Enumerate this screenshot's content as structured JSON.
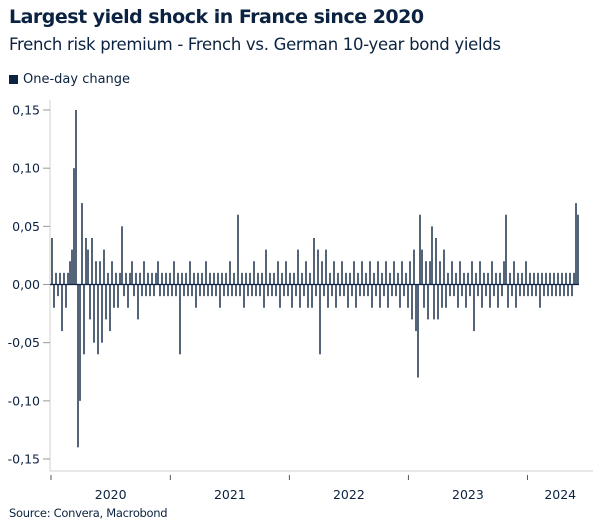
{
  "title": "Largest yield shock in France since 2020",
  "subtitle": "French risk premium - French vs. German 10-year bond yields",
  "source": "Source: Convera, Macrobond",
  "colors": {
    "bar": "#0b2240",
    "axis": "#d0d0d0"
  },
  "chart_data": {
    "type": "bar",
    "title": "Largest yield shock in France since 2020",
    "legend": [
      "One-day change"
    ],
    "legend_position": "top-left",
    "x_range": [
      "2020-01-01",
      "2024-07-20"
    ],
    "x_tick_labels": [
      "2020",
      "2021",
      "2022",
      "2023",
      "2024"
    ],
    "ylim": [
      -0.15,
      0.15
    ],
    "y_ticks": [
      0.15,
      0.1,
      0.05,
      0.0,
      -0.05,
      -0.1,
      -0.15
    ],
    "y_tick_labels": [
      "0,15",
      "0,10",
      "0,05",
      "0,00",
      "-0,05",
      "-0,10",
      "-0,15"
    ],
    "grid": false,
    "values": [
      0.04,
      -0.02,
      0.01,
      -0.01,
      0.01,
      -0.04,
      0.01,
      -0.02,
      0.01,
      0.02,
      0.03,
      0.1,
      0.15,
      -0.14,
      -0.1,
      0.07,
      -0.06,
      0.04,
      0.03,
      -0.03,
      0.04,
      -0.05,
      0.02,
      -0.06,
      0.02,
      -0.05,
      0.03,
      -0.03,
      0.01,
      -0.04,
      0.02,
      -0.02,
      0.01,
      -0.02,
      0.01,
      0.05,
      -0.01,
      0.01,
      -0.02,
      0.01,
      0.02,
      -0.01,
      0.01,
      -0.03,
      0.01,
      -0.01,
      0.02,
      -0.01,
      0.01,
      -0.01,
      0.01,
      -0.01,
      0.01,
      0.02,
      -0.01,
      0.01,
      -0.01,
      0.01,
      -0.01,
      0.01,
      -0.01,
      0.02,
      -0.01,
      0.01,
      -0.06,
      0.01,
      -0.01,
      0.01,
      -0.01,
      0.02,
      -0.01,
      0.01,
      -0.02,
      0.01,
      -0.01,
      0.01,
      -0.01,
      0.02,
      -0.01,
      0.01,
      -0.01,
      0.01,
      -0.01,
      0.01,
      -0.02,
      0.01,
      -0.01,
      0.01,
      -0.01,
      0.02,
      -0.01,
      0.01,
      -0.01,
      0.06,
      -0.01,
      0.01,
      -0.02,
      0.01,
      -0.01,
      0.01,
      -0.01,
      0.02,
      -0.01,
      0.01,
      -0.01,
      0.01,
      -0.02,
      0.03,
      -0.01,
      0.01,
      -0.01,
      0.01,
      -0.01,
      0.02,
      -0.02,
      0.01,
      -0.01,
      0.02,
      -0.01,
      0.01,
      -0.02,
      0.01,
      -0.01,
      0.03,
      -0.02,
      0.01,
      -0.01,
      0.02,
      -0.02,
      0.01,
      -0.02,
      0.04,
      -0.01,
      0.03,
      -0.06,
      0.02,
      -0.01,
      0.03,
      -0.02,
      0.01,
      -0.01,
      0.02,
      -0.02,
      0.01,
      -0.01,
      0.02,
      -0.01,
      0.01,
      -0.02,
      0.01,
      -0.01,
      0.02,
      -0.02,
      0.01,
      -0.01,
      0.02,
      -0.01,
      0.01,
      -0.01,
      0.02,
      -0.02,
      0.01,
      -0.01,
      0.02,
      -0.02,
      0.01,
      -0.01,
      0.02,
      -0.02,
      0.01,
      -0.01,
      0.02,
      -0.01,
      0.01,
      -0.02,
      0.02,
      -0.01,
      0.01,
      -0.02,
      0.02,
      -0.03,
      0.03,
      -0.04,
      -0.08,
      0.06,
      0.03,
      -0.02,
      0.02,
      -0.03,
      0.02,
      0.05,
      -0.03,
      0.04,
      -0.03,
      0.02,
      -0.02,
      0.03,
      -0.02,
      0.01,
      -0.01,
      0.02,
      -0.01,
      0.01,
      -0.02,
      0.02,
      -0.01,
      0.01,
      -0.02,
      0.01,
      -0.01,
      0.02,
      -0.04,
      0.01,
      -0.01,
      0.02,
      -0.02,
      0.01,
      -0.01,
      0.01,
      -0.02,
      0.02,
      -0.01,
      0.01,
      -0.02,
      0.01,
      -0.01,
      0.02,
      0.06,
      -0.02,
      0.01,
      -0.01,
      0.02,
      -0.02,
      0.01,
      -0.01,
      0.01,
      -0.01,
      0.02,
      -0.01,
      0.01,
      -0.01,
      0.01,
      -0.01,
      0.01,
      -0.02,
      0.01,
      -0.01,
      0.01,
      -0.01,
      0.01,
      -0.01,
      0.01,
      -0.01,
      0.01,
      -0.01,
      0.01,
      -0.01,
      0.01,
      -0.01,
      0.01,
      -0.01,
      0.01,
      0.07,
      0.06
    ]
  }
}
